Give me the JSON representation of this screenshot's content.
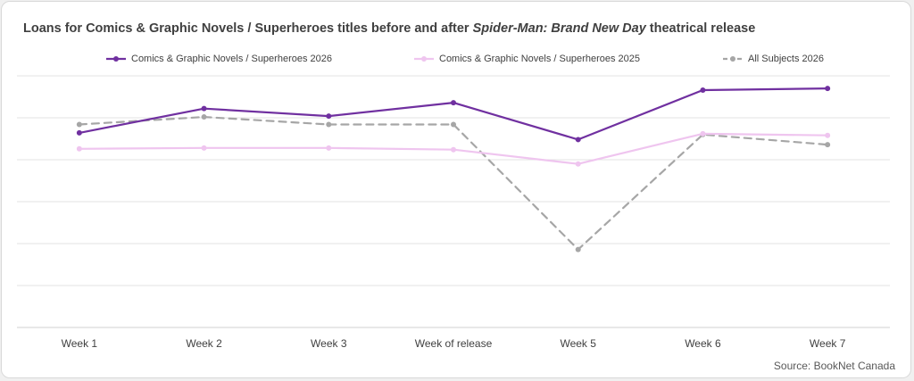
{
  "title": {
    "prefix": "Loans for Comics & Graphic Novels / Superheroes titles before and after ",
    "emphasis": "Spider-Man: Brand New Day",
    "suffix": " theatrical release"
  },
  "source": "Source: BookNet Canada",
  "chart_data": {
    "type": "line",
    "title": "Loans for Comics & Graphic Novels / Superheroes titles before and after Spider-Man: Brand New Day theatrical release",
    "categories": [
      "Week 1",
      "Week 2",
      "Week 3",
      "Week of release",
      "Week 5",
      "Week 6",
      "Week 7"
    ],
    "ylim": [
      0,
      300
    ],
    "yticks": [
      0,
      50,
      100,
      150,
      200,
      250,
      300
    ],
    "grid": true,
    "ytick_labels_visible": false,
    "legend_position": "top",
    "series": [
      {
        "name": "Comics & Graphic Novels / Superheroes 2026",
        "values": [
          232,
          261,
          252,
          268,
          224,
          283,
          285
        ],
        "color": "#7030a0",
        "dash": false
      },
      {
        "name": "Comics & Graphic Novels / Superheroes 2025",
        "values": [
          213,
          214,
          214,
          212,
          195,
          231,
          229
        ],
        "color": "#efc5ef",
        "dash": false
      },
      {
        "name": "All Subjects 2026",
        "values": [
          242,
          251,
          242,
          242,
          93,
          230,
          218
        ],
        "color": "#a6a6a6",
        "dash": true
      }
    ]
  }
}
